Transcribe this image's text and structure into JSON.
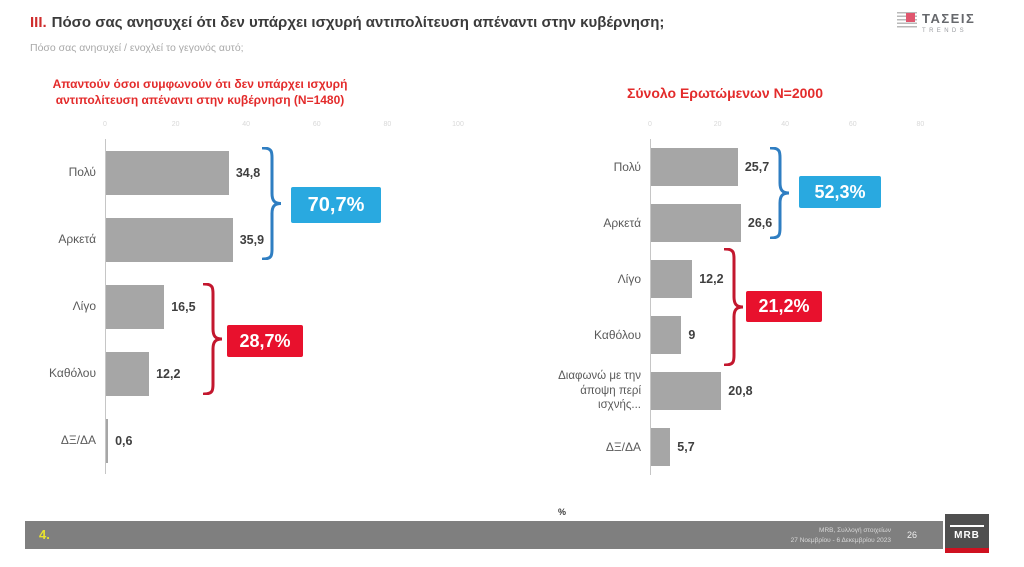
{
  "page": {
    "title_prefix": "III.",
    "title": "Πόσο σας ανησυχεί ότι δεν υπάρχει ισχυρή αντιπολίτευση απέναντι στην κυβέρνηση;",
    "subtitle": "Πόσο σας ανησυχεί / ενοχλεί το γεγονός αυτό;",
    "axis_unit_label": "%"
  },
  "brand": {
    "logo_text": "ΤΑΣΕΙΣ",
    "logo_subtext": "TRENDS"
  },
  "colors": {
    "accent_red": "#e32b2b",
    "bar_gray": "#a6a6a6",
    "blue_box": "#29a9e0",
    "red_box": "#e8112d",
    "footer_bar": "#7f7f7f",
    "slide_number_yellow": "#e8e22e"
  },
  "chart_data": [
    {
      "type": "bar",
      "orientation": "horizontal",
      "title": "Απαντούν όσοι συμφωνούν ότι δεν υπάρχει ισχυρή αντιπολίτευση απέναντι στην κυβέρνηση (N=1480)",
      "categories": [
        "Πολύ",
        "Αρκετά",
        "Λίγο",
        "Καθόλου",
        "ΔΞ/ΔΑ"
      ],
      "values": [
        34.8,
        35.9,
        16.5,
        12.2,
        0.6
      ],
      "value_labels": [
        "34,8",
        "35,9",
        "16,5",
        "12,2",
        "0,6"
      ],
      "xlim": [
        0,
        100
      ],
      "x_ticks": [
        0,
        20,
        40,
        60,
        80,
        100
      ],
      "bar_color": "#a6a6a6",
      "grid": false,
      "groups": [
        {
          "label": "70,7%",
          "rows": [
            0,
            1
          ],
          "box_color": "#29a9e0",
          "brace_color": "#2f7ec2"
        },
        {
          "label": "28,7%",
          "rows": [
            2,
            3
          ],
          "box_color": "#e8112d",
          "brace_color": "#c3172e"
        }
      ]
    },
    {
      "type": "bar",
      "orientation": "horizontal",
      "title": "Σύνολο Ερωτώμενων N=2000",
      "categories": [
        "Πολύ",
        "Αρκετά",
        "Λίγο",
        "Καθόλου",
        "Διαφωνώ με την άποψη περί ισχνής...",
        "ΔΞ/ΔΑ"
      ],
      "values": [
        25.7,
        26.6,
        12.2,
        9,
        20.8,
        5.7
      ],
      "value_labels": [
        "25,7",
        "26,6",
        "12,2",
        "9",
        "20,8",
        "5,7"
      ],
      "xlim": [
        0,
        100
      ],
      "x_ticks": [
        0,
        20,
        40,
        60,
        80
      ],
      "bar_color": "#a6a6a6",
      "grid": false,
      "groups": [
        {
          "label": "52,3%",
          "rows": [
            0,
            1
          ],
          "box_color": "#29a9e0",
          "brace_color": "#2f7ec2"
        },
        {
          "label": "21,2%",
          "rows": [
            2,
            3
          ],
          "box_color": "#e8112d",
          "brace_color": "#c3172e"
        }
      ]
    }
  ],
  "footer": {
    "slide_number": "4.",
    "source_line1": "MRB, Συλλογή στοιχείων",
    "source_line2": "27 Νοεμβρίου - 6 Δεκεμβρίου 2023",
    "page_number": "26",
    "logo_text": "MRB"
  }
}
